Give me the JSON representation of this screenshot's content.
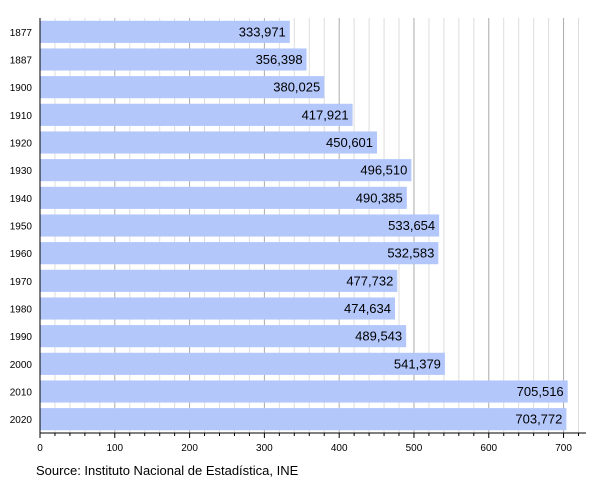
{
  "chart_data": {
    "type": "bar",
    "orientation": "horizontal",
    "categories": [
      "1877",
      "1887",
      "1900",
      "1910",
      "1920",
      "1930",
      "1940",
      "1950",
      "1960",
      "1970",
      "1980",
      "1990",
      "2000",
      "2010",
      "2020"
    ],
    "values": [
      333971,
      356398,
      380025,
      417921,
      450601,
      496510,
      490385,
      533654,
      532583,
      477732,
      474634,
      489543,
      541379,
      705516,
      703772
    ],
    "value_labels": [
      "333,971",
      "356,398",
      "380,025",
      "417,921",
      "450,601",
      "496,510",
      "490,385",
      "533,654",
      "532,583",
      "477,732",
      "474,634",
      "489,543",
      "541,379",
      "705,516",
      "703,772"
    ],
    "xaxis_unit_divisor": 1000,
    "xticks": [
      0,
      100,
      200,
      300,
      400,
      500,
      600,
      700
    ],
    "xlim": [
      0,
      730
    ],
    "minor_tick_step": 20,
    "grid": true,
    "bar_color": "#b3c7fb",
    "source": "Source: Instituto Nacional de Estadística, INE"
  }
}
